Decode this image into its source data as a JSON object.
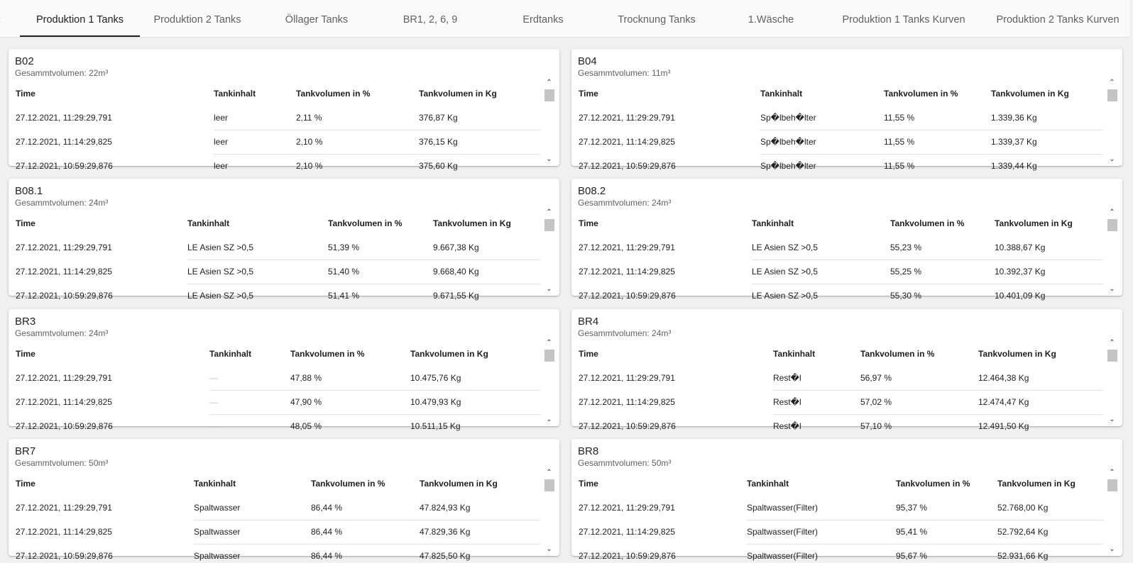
{
  "tabs": {
    "prev_glyph": "‹",
    "items": [
      {
        "label": "Produktion 1 Tanks"
      },
      {
        "label": "Produktion 2 Tanks"
      },
      {
        "label": "Öllager Tanks"
      },
      {
        "label": "BR1, 2, 6, 9"
      },
      {
        "label": "Erdtanks"
      },
      {
        "label": "Trocknung Tanks"
      },
      {
        "label": "1.Wäsche"
      },
      {
        "label": "Produktion 1 Tanks Kurven"
      },
      {
        "label": "Produktion 2 Tanks Kurven"
      }
    ],
    "active_index": 0
  },
  "columns": [
    "Time",
    "Tankinhalt",
    "Tankvolumen in %",
    "Tankvolumen in Kg"
  ],
  "scrollbar": {
    "up_glyph": "⌃",
    "down_glyph": "⌄"
  },
  "tanks": [
    {
      "title": "B02",
      "subtitle": "Gesammtvolumen: 22m³",
      "rows": [
        [
          "27.12.2021, 11:29:29,791",
          "leer",
          "2,11 %",
          "376,87 Kg"
        ],
        [
          "27.12.2021, 11:14:29,825",
          "leer",
          "2,10 %",
          "376,15 Kg"
        ],
        [
          "27.12.2021, 10:59:29,876",
          "leer",
          "2,10 %",
          "375,60 Kg"
        ]
      ]
    },
    {
      "title": "B04",
      "subtitle": "Gesammtvolumen: 11m³",
      "rows": [
        [
          "27.12.2021, 11:29:29,791",
          "Sp�lbeh�lter",
          "11,55 %",
          "1.339,36 Kg"
        ],
        [
          "27.12.2021, 11:14:29,825",
          "Sp�lbeh�lter",
          "11,55 %",
          "1.339,37 Kg"
        ],
        [
          "27.12.2021, 10:59:29,876",
          "Sp�lbeh�lter",
          "11,55 %",
          "1.339,44 Kg"
        ]
      ]
    },
    {
      "title": "B08.1",
      "subtitle": "Gesammtvolumen: 24m³",
      "rows": [
        [
          "27.12.2021, 11:29:29,791",
          "LE Asien SZ >0,5",
          "51,39 %",
          "9.667,38 Kg"
        ],
        [
          "27.12.2021, 11:14:29,825",
          "LE Asien SZ >0,5",
          "51,40 %",
          "9.668,40 Kg"
        ],
        [
          "27.12.2021, 10:59:29,876",
          "LE Asien SZ >0,5",
          "51,41 %",
          "9.671,55 Kg"
        ]
      ]
    },
    {
      "title": "B08.2",
      "subtitle": "Gesammtvolumen: 24m³",
      "rows": [
        [
          "27.12.2021, 11:29:29,791",
          "LE Asien SZ >0,5",
          "55,23 %",
          "10.388,67 Kg"
        ],
        [
          "27.12.2021, 11:14:29,825",
          "LE Asien SZ >0,5",
          "55,25 %",
          "10.392,37 Kg"
        ],
        [
          "27.12.2021, 10:59:29,876",
          "LE Asien SZ >0,5",
          "55,30 %",
          "10.401,09 Kg"
        ]
      ]
    },
    {
      "title": "BR3",
      "subtitle": "Gesammtvolumen: 24m³",
      "rows": [
        [
          "27.12.2021, 11:29:29,791",
          "—",
          "47,88 %",
          "10.475,76 Kg"
        ],
        [
          "27.12.2021, 11:14:29,825",
          "—",
          "47,90 %",
          "10.479,93 Kg"
        ],
        [
          "27.12.2021, 10:59:29,876",
          "—",
          "48,05 %",
          "10.511,15 Kg"
        ]
      ]
    },
    {
      "title": "BR4",
      "subtitle": "Gesammtvolumen: 24m³",
      "rows": [
        [
          "27.12.2021, 11:29:29,791",
          "Rest�l",
          "56,97 %",
          "12.464,38 Kg"
        ],
        [
          "27.12.2021, 11:14:29,825",
          "Rest�l",
          "57,02 %",
          "12.474,47 Kg"
        ],
        [
          "27.12.2021, 10:59:29,876",
          "Rest�l",
          "57,10 %",
          "12.491,50 Kg"
        ]
      ]
    },
    {
      "title": "BR7",
      "subtitle": "Gesammtvolumen: 50m³",
      "rows": [
        [
          "27.12.2021, 11:29:29,791",
          "Spaltwasser",
          "86,44 %",
          "47.824,93 Kg"
        ],
        [
          "27.12.2021, 11:14:29,825",
          "Spaltwasser",
          "86,44 %",
          "47.829,36 Kg"
        ],
        [
          "27.12.2021, 10:59:29,876",
          "Spaltwasser",
          "86,44 %",
          "47.825,50 Kg"
        ]
      ]
    },
    {
      "title": "BR8",
      "subtitle": "Gesammtvolumen: 50m³",
      "rows": [
        [
          "27.12.2021, 11:29:29,791",
          "Spaltwasser(Filter)",
          "95,37 %",
          "52.768,00 Kg"
        ],
        [
          "27.12.2021, 11:14:29,825",
          "Spaltwasser(Filter)",
          "95,41 %",
          "52.792,64 Kg"
        ],
        [
          "27.12.2021, 10:59:29,876",
          "Spaltwasser(Filter)",
          "95,67 %",
          "52.931,66 Kg"
        ]
      ]
    }
  ]
}
